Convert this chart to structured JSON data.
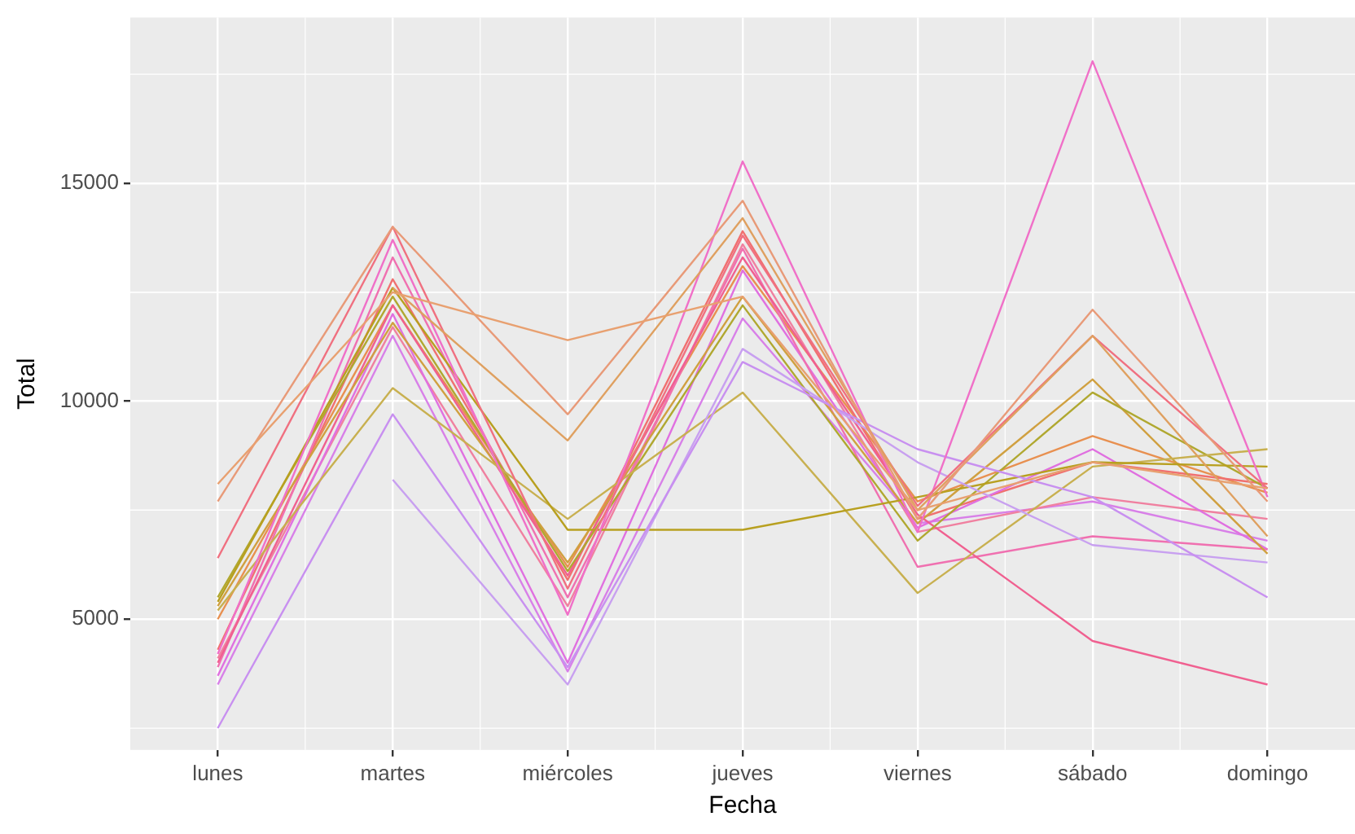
{
  "chart_data": {
    "type": "line",
    "xlabel": "Fecha",
    "ylabel": "Total",
    "categories": [
      "lunes",
      "martes",
      "miércoles",
      "jueves",
      "viernes",
      "sábado",
      "domingo"
    ],
    "ylim": [
      2000,
      18800
    ],
    "yticks": [
      5000,
      10000,
      15000
    ],
    "grid": true,
    "legend": false,
    "marker": "none",
    "line_style": "solid",
    "series": [
      {
        "color": "#e8a070",
        "values": [
          8100,
          12500,
          11400,
          12400,
          7500,
          8600,
          8000
        ]
      },
      {
        "color": "#e89a78",
        "values": [
          7700,
          14000,
          9700,
          14600,
          7300,
          12100,
          7700
        ]
      },
      {
        "color": "#dfa060",
        "values": [
          null,
          12600,
          9100,
          14200,
          7500,
          11500,
          6900
        ]
      },
      {
        "color": "#f07080",
        "values": [
          6400,
          14000,
          5700,
          13800,
          7600,
          11500,
          8000
        ]
      },
      {
        "color": "#f070c8",
        "values": [
          4200,
          13700,
          5100,
          15500,
          7000,
          17800,
          7800
        ]
      },
      {
        "color": "#c890f0",
        "values": [
          2500,
          9700,
          3900,
          10900,
          8900,
          7800,
          5500
        ]
      },
      {
        "color": "#c8a0f0",
        "values": [
          null,
          8200,
          3500,
          11200,
          8600,
          6700,
          6300
        ]
      },
      {
        "color": "#b8a020",
        "values": [
          5400,
          12600,
          7050,
          7050,
          7800,
          8600,
          8500
        ]
      },
      {
        "color": "#c8b050",
        "values": [
          5200,
          10300,
          7300,
          10200,
          5600,
          8500,
          8900
        ]
      },
      {
        "color": "#b0a830",
        "values": [
          5500,
          12400,
          6100,
          12200,
          6800,
          10200,
          8000
        ]
      },
      {
        "color": "#d0a040",
        "values": [
          5300,
          11800,
          6300,
          12400,
          7200,
          10500,
          6500
        ]
      },
      {
        "color": "#f06090",
        "values": [
          4000,
          12200,
          6000,
          13300,
          7400,
          4500,
          3500
        ]
      },
      {
        "color": "#f070b0",
        "values": [
          3900,
          13300,
          5500,
          13500,
          6200,
          6900,
          6600
        ]
      },
      {
        "color": "#e070e0",
        "values": [
          3700,
          12000,
          4000,
          13000,
          7100,
          8900,
          6600
        ]
      },
      {
        "color": "#f07070",
        "values": [
          4300,
          12800,
          5900,
          13900,
          7300,
          8600,
          8100
        ]
      },
      {
        "color": "#f080a0",
        "values": [
          4100,
          11700,
          5300,
          13600,
          7000,
          7800,
          7300
        ]
      },
      {
        "color": "#d880e8",
        "values": [
          3500,
          11500,
          3800,
          11900,
          7200,
          7700,
          6800
        ]
      },
      {
        "color": "#e89050",
        "values": [
          5000,
          12200,
          6200,
          13100,
          7700,
          9200,
          7900
        ]
      }
    ]
  }
}
